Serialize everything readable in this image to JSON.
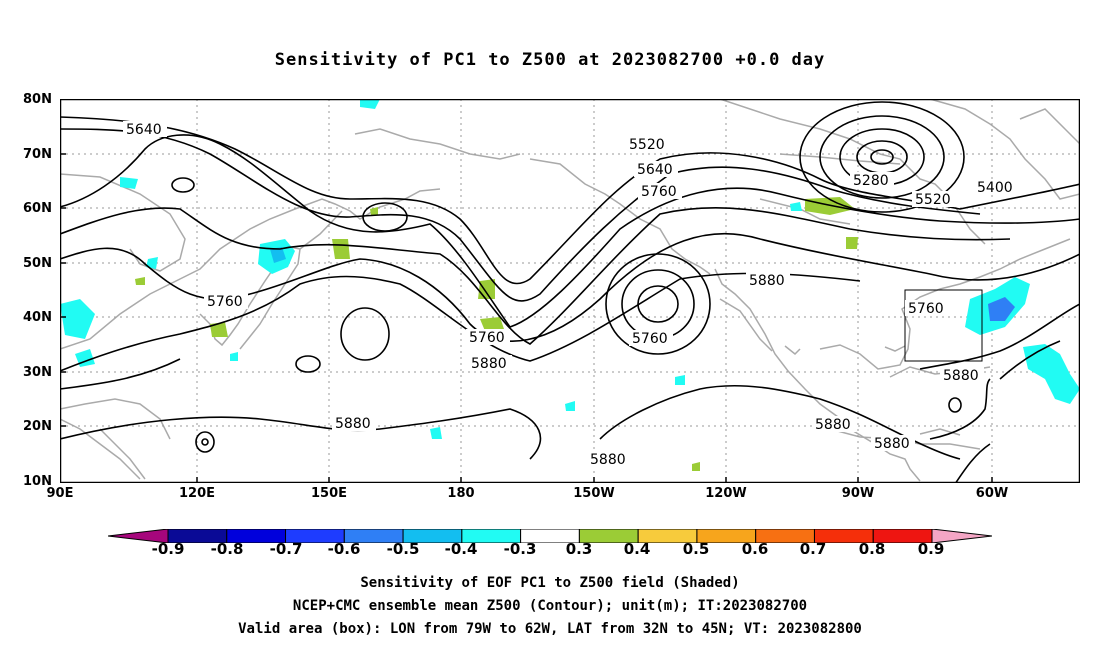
{
  "title": "Sensitivity of PC1 to Z500 at 2023082700 +0.0 day",
  "lat_ticks": [
    "80N",
    "70N",
    "60N",
    "50N",
    "40N",
    "30N",
    "20N",
    "10N"
  ],
  "lon_ticks": [
    "90E",
    "120E",
    "150E",
    "180",
    "150W",
    "120W",
    "90W",
    "60W"
  ],
  "contour_labels": [
    "5640",
    "5520",
    "5640",
    "5760",
    "5280",
    "5400",
    "5520",
    "5760",
    "5880",
    "5760",
    "5760",
    "5880",
    "5880",
    "5760",
    "5880",
    "5880",
    "5880",
    "5880"
  ],
  "colorbar": {
    "labels": [
      "-0.9",
      "-0.8",
      "-0.7",
      "-0.6",
      "-0.5",
      "-0.4",
      "-0.3",
      "0.3",
      "0.4",
      "0.5",
      "0.6",
      "0.7",
      "0.8",
      "0.9"
    ],
    "colors": [
      "#0a0a96",
      "#0000dc",
      "#1e3cff",
      "#2f7ff5",
      "#13bef0",
      "#21fbf3",
      "#ffffff",
      "#9bcc36",
      "#f7cb3c",
      "#f7a51c",
      "#f77012",
      "#f52f0a",
      "#ee1511"
    ],
    "left_tip": "#a6067c",
    "right_tip": "#f4a6c5"
  },
  "captions": [
    "Sensitivity of EOF PC1 to Z500 field (Shaded)",
    "NCEP+CMC ensemble mean Z500 (Contour); unit(m); IT:2023082700",
    "Valid area (box): LON from 79W to 62W, LAT from 32N to 45N; VT: 2023082800"
  ]
}
